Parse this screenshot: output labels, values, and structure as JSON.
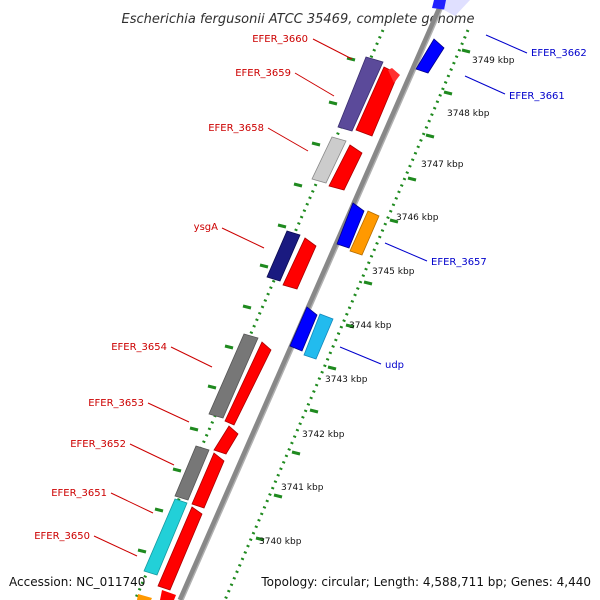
{
  "title": "Escherichia fergusonii ATCC 35469, complete genome",
  "footer": {
    "accession": "Accession: NC_011740",
    "topology": "Topology: circular; Length: 4,588,711 bp; Genes: 4,440"
  },
  "colors": {
    "left_label": "#cc0000",
    "right_label": "#0000cc",
    "backbone": "#808080",
    "tick": "#1f8a1f",
    "red": "#ff0000",
    "blue": "#0000ff",
    "gray": "#777777",
    "darkgray": "#666666",
    "lightgray": "#cccccc",
    "purple": "#5b4a9a",
    "navy": "#1a1a80",
    "cyan": "#22d0d8",
    "lightblue": "#22aaff",
    "orange": "#ff9900"
  },
  "kbp_labels": [
    "3740 kbp",
    "3741 kbp",
    "3742 kbp",
    "3743 kbp",
    "3744 kbp",
    "3745 kbp",
    "3746 kbp",
    "3747 kbp",
    "3748 kbp",
    "3749 kbp"
  ],
  "left_labels": [
    "EFER_3660",
    "EFER_3659",
    "EFER_3658",
    "ysgA",
    "EFER_3654",
    "EFER_3653",
    "EFER_3652",
    "EFER_3651",
    "EFER_3650"
  ],
  "right_labels": [
    "EFER_3662",
    "EFER_3661",
    "EFER_3657",
    "udp"
  ]
}
